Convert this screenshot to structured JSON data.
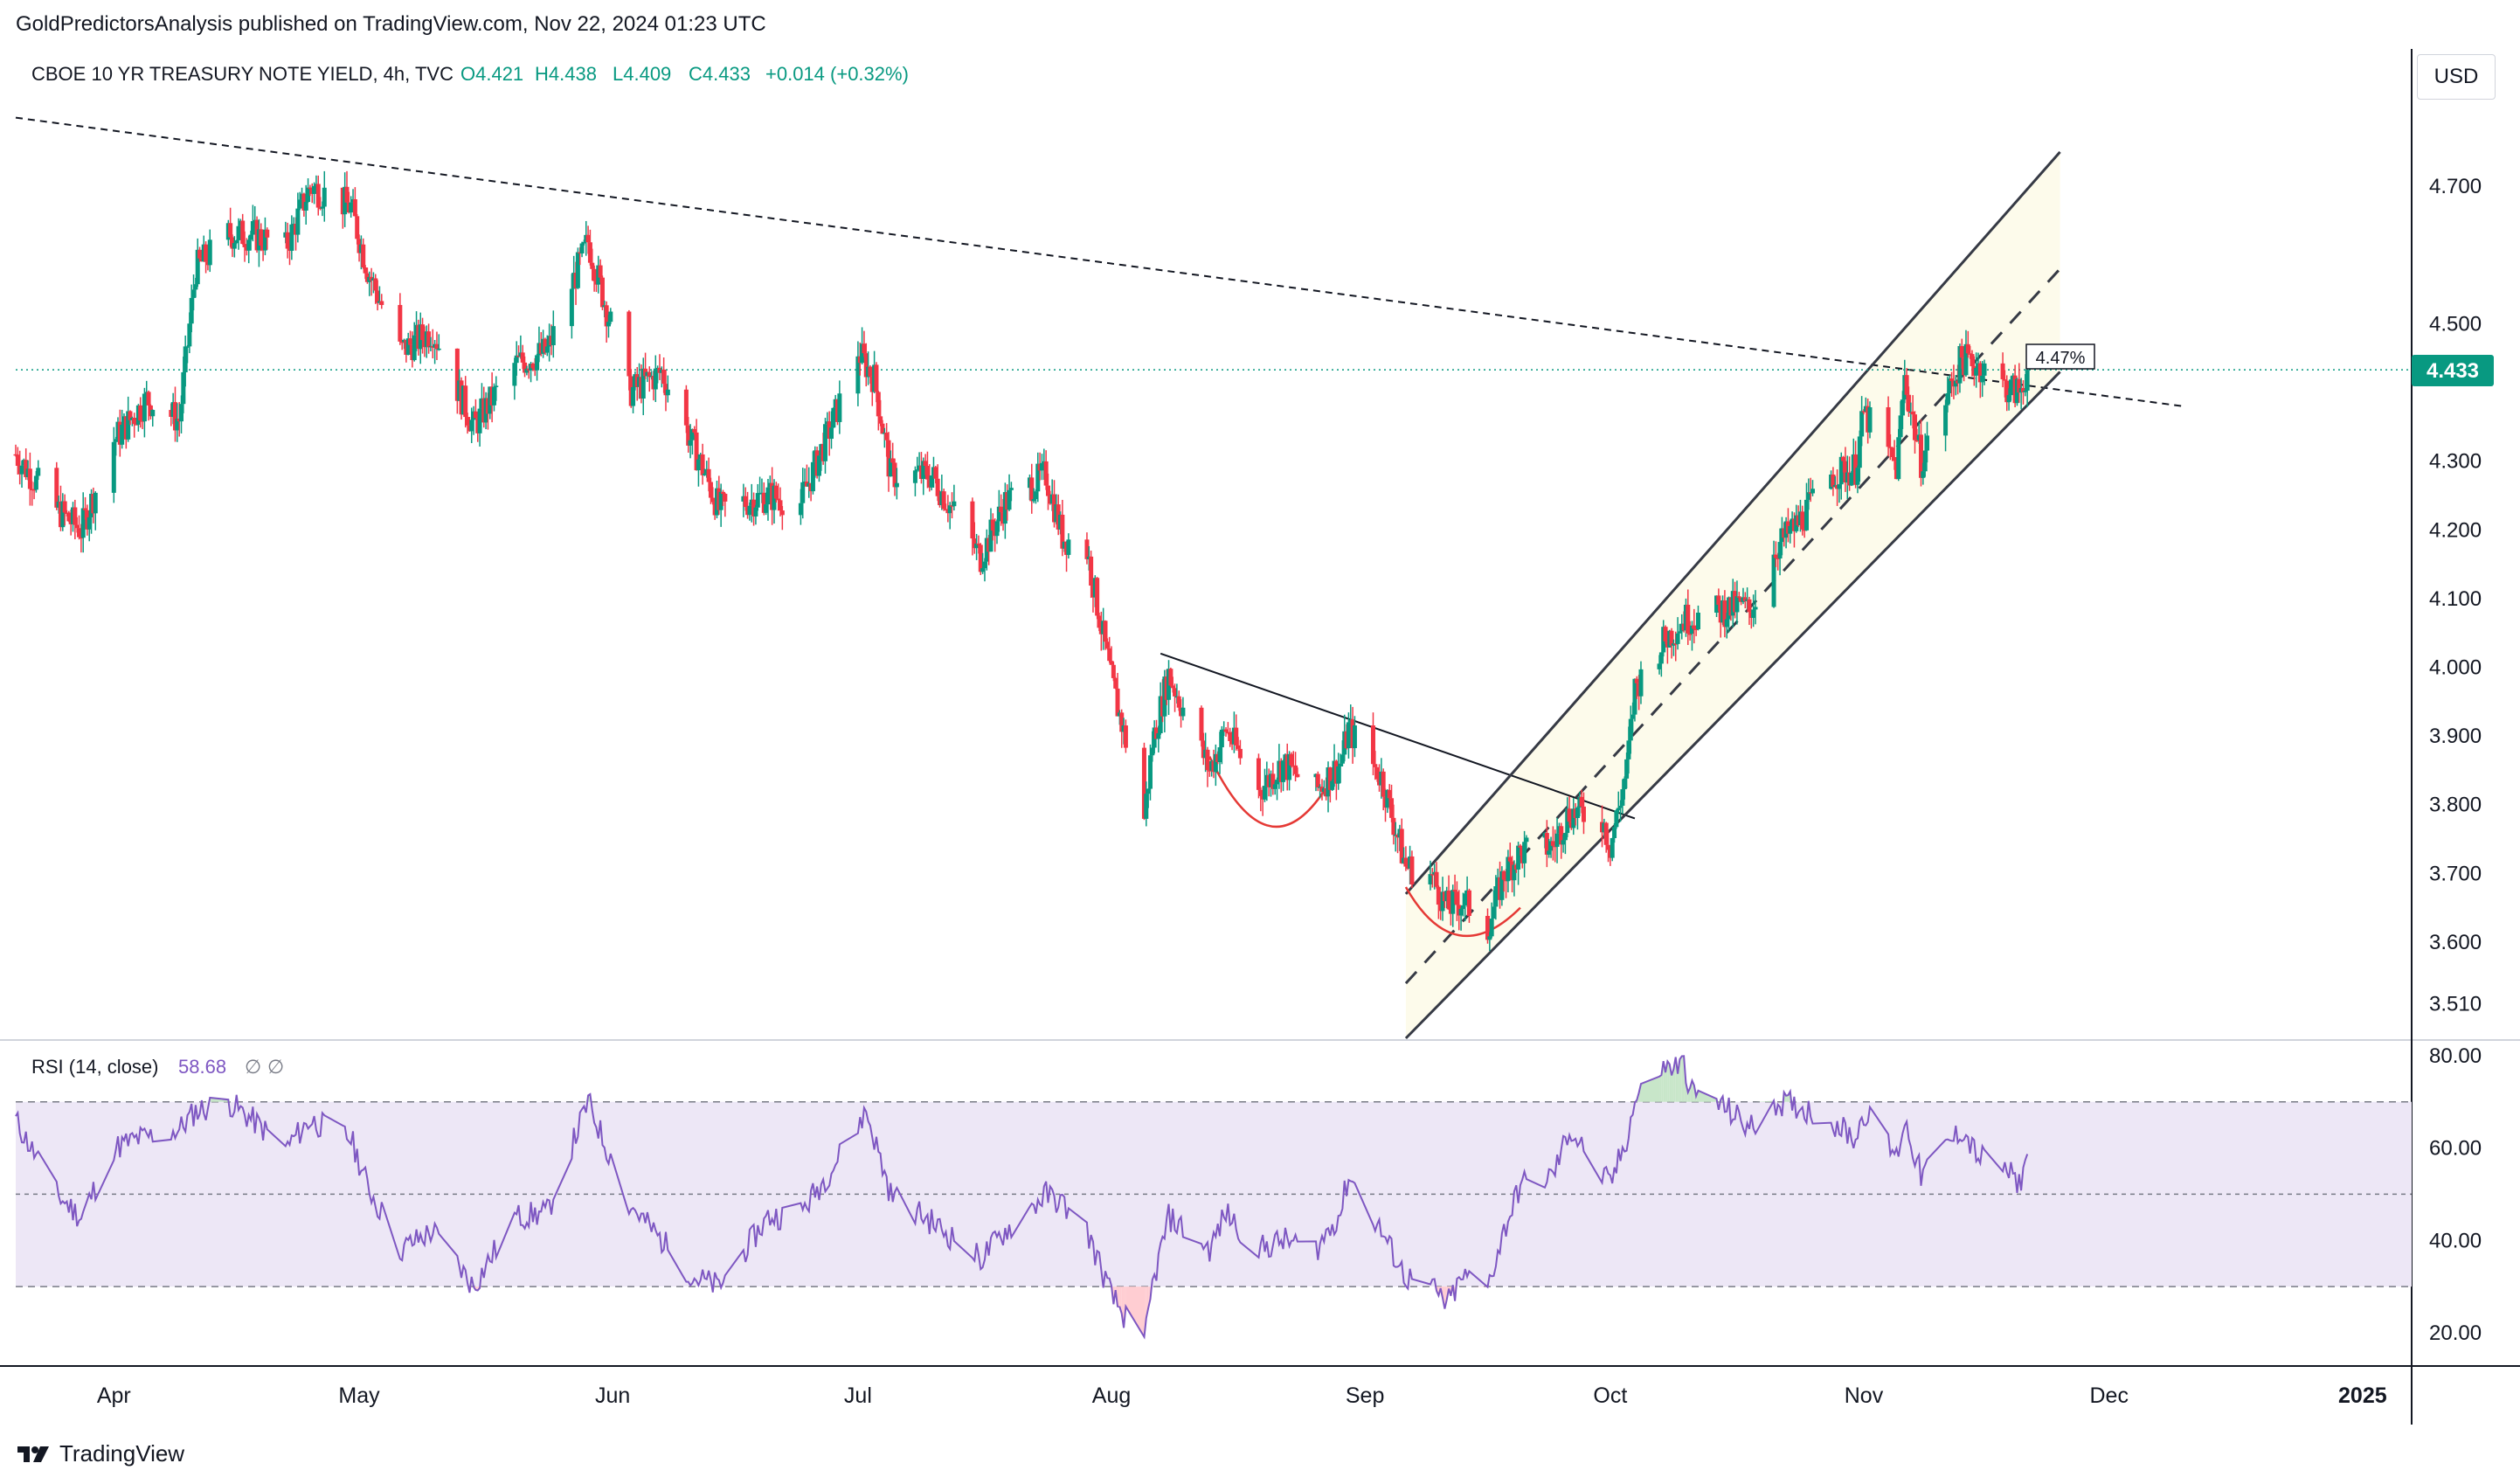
{
  "publisher": "GoldPredictorsAnalysis published on TradingView.com, Nov 22, 2024 01:23 UTC",
  "brand": "TradingView",
  "legend": {
    "symbol": "CBOE 10 YR TREASURY NOTE YIELD, 4h, TVC",
    "open": "O4.421",
    "high": "H4.438",
    "low": "L4.409",
    "close": "C4.433",
    "change": "+0.014 (+0.32%)"
  },
  "currency": "USD",
  "price_label": "4.433",
  "annotation": "4.47%",
  "rsi_legend": {
    "name": "RSI (14, close)",
    "value": "58.68",
    "extra1": "∅",
    "extra2": "∅"
  },
  "colors": {
    "up": "#089981",
    "down": "#f23645",
    "rsi_line": "#7e57c2",
    "rsi_band": "#ede7f6",
    "channel_fill": "#fdfbeb",
    "price_badge": "#089981",
    "curve": "#e53935"
  },
  "chart_data": [
    {
      "type": "candlestick",
      "title": "CBOE 10 YR TREASURY NOTE YIELD",
      "x_ticks": [
        "Apr",
        "May",
        "Jun",
        "Jul",
        "Aug",
        "Sep",
        "Oct",
        "Nov",
        "Dec",
        "2025"
      ],
      "y_ticks": [
        "4.700",
        "4.500",
        "4.300",
        "4.200",
        "4.100",
        "4.000",
        "3.900",
        "3.800",
        "3.700",
        "3.600",
        "3.510"
      ],
      "ylim": [
        3.46,
        4.9
      ],
      "last_close": 4.433,
      "anchors": [
        [
          "2024-03-20",
          4.31
        ],
        [
          "2024-03-25",
          4.23
        ],
        [
          "2024-03-28",
          4.2
        ],
        [
          "2024-04-01",
          4.33
        ],
        [
          "2024-04-05",
          4.39
        ],
        [
          "2024-04-09",
          4.36
        ],
        [
          "2024-04-11",
          4.58
        ],
        [
          "2024-04-15",
          4.63
        ],
        [
          "2024-04-18",
          4.63
        ],
        [
          "2024-04-22",
          4.61
        ],
        [
          "2024-04-25",
          4.7
        ],
        [
          "2024-04-30",
          4.67
        ],
        [
          "2024-05-02",
          4.58
        ],
        [
          "2024-05-06",
          4.46
        ],
        [
          "2024-05-10",
          4.49
        ],
        [
          "2024-05-15",
          4.35
        ],
        [
          "2024-05-20",
          4.44
        ],
        [
          "2024-05-24",
          4.46
        ],
        [
          "2024-05-29",
          4.62
        ],
        [
          "2024-06-03",
          4.4
        ],
        [
          "2024-06-07",
          4.43
        ],
        [
          "2024-06-12",
          4.29
        ],
        [
          "2024-06-14",
          4.23
        ],
        [
          "2024-06-20",
          4.25
        ],
        [
          "2024-06-24",
          4.24
        ],
        [
          "2024-06-28",
          4.36
        ],
        [
          "2024-07-01",
          4.46
        ],
        [
          "2024-07-03",
          4.42
        ],
        [
          "2024-07-05",
          4.28
        ],
        [
          "2024-07-10",
          4.28
        ],
        [
          "2024-07-16",
          4.16
        ],
        [
          "2024-07-19",
          4.24
        ],
        [
          "2024-07-24",
          4.28
        ],
        [
          "2024-07-26",
          4.19
        ],
        [
          "2024-07-29",
          4.17
        ],
        [
          "2024-08-01",
          3.98
        ],
        [
          "2024-08-05",
          3.78
        ],
        [
          "2024-08-06",
          3.89
        ],
        [
          "2024-08-08",
          3.99
        ],
        [
          "2024-08-13",
          3.85
        ],
        [
          "2024-08-15",
          3.91
        ],
        [
          "2024-08-19",
          3.82
        ],
        [
          "2024-08-22",
          3.86
        ],
        [
          "2024-08-26",
          3.82
        ],
        [
          "2024-08-29",
          3.86
        ],
        [
          "2024-08-30",
          3.91
        ],
        [
          "2024-09-03",
          3.84
        ],
        [
          "2024-09-06",
          3.71
        ],
        [
          "2024-09-09",
          3.7
        ],
        [
          "2024-09-11",
          3.65
        ],
        [
          "2024-09-13",
          3.66
        ],
        [
          "2024-09-16",
          3.62
        ],
        [
          "2024-09-18",
          3.7
        ],
        [
          "2024-09-20",
          3.73
        ],
        [
          "2024-09-24",
          3.74
        ],
        [
          "2024-09-26",
          3.79
        ],
        [
          "2024-09-30",
          3.78
        ],
        [
          "2024-10-01",
          3.74
        ],
        [
          "2024-10-03",
          3.85
        ],
        [
          "2024-10-04",
          3.97
        ],
        [
          "2024-10-07",
          4.03
        ],
        [
          "2024-10-10",
          4.07
        ],
        [
          "2024-10-14",
          4.08
        ],
        [
          "2024-10-17",
          4.09
        ],
        [
          "2024-10-18",
          4.08
        ],
        [
          "2024-10-21",
          4.17
        ],
        [
          "2024-10-24",
          4.21
        ],
        [
          "2024-10-28",
          4.28
        ],
        [
          "2024-10-31",
          4.29
        ],
        [
          "2024-11-01",
          4.37
        ],
        [
          "2024-11-05",
          4.29
        ],
        [
          "2024-11-06",
          4.42
        ],
        [
          "2024-11-08",
          4.3
        ],
        [
          "2024-11-12",
          4.42
        ],
        [
          "2024-11-13",
          4.45
        ],
        [
          "2024-11-15",
          4.44
        ],
        [
          "2024-11-18",
          4.41
        ],
        [
          "2024-11-20",
          4.4
        ],
        [
          "2024-11-21",
          4.433
        ]
      ],
      "overlays": {
        "long_downtrend": [
          [
            "2024-03-20",
            4.8
          ],
          [
            "2024-12-10",
            4.38
          ]
        ],
        "aug_downtrend": [
          [
            "2024-08-07",
            4.02
          ],
          [
            "2024-10-04",
            3.78
          ]
        ],
        "channel_upper": [
          [
            "2024-09-06",
            3.67
          ],
          [
            "2024-11-25",
            4.75
          ]
        ],
        "channel_lower": [
          [
            "2024-09-06",
            3.46
          ],
          [
            "2024-11-25",
            4.43
          ]
        ],
        "channel_mid": [
          [
            "2024-09-06",
            3.54
          ],
          [
            "2024-11-25",
            4.58
          ]
        ],
        "cup_aug": [
          [
            "2024-08-13",
            3.87
          ],
          [
            "2024-08-20",
            3.77
          ],
          [
            "2024-08-27",
            3.82
          ]
        ],
        "cup_sep": [
          [
            "2024-09-06",
            3.68
          ],
          [
            "2024-09-12",
            3.61
          ],
          [
            "2024-09-20",
            3.65
          ]
        ]
      }
    },
    {
      "type": "line",
      "title": "RSI (14, close)",
      "last_value": 58.68,
      "y_ticks": [
        "80.00",
        "60.00",
        "40.00",
        "20.00"
      ],
      "ylim": [
        13,
        83
      ],
      "bands": [
        30,
        50,
        70
      ],
      "anchors": [
        [
          "2024-03-20",
          66
        ],
        [
          "2024-03-25",
          50
        ],
        [
          "2024-03-28",
          45
        ],
        [
          "2024-04-01",
          60
        ],
        [
          "2024-04-04",
          62
        ],
        [
          "2024-04-09",
          64
        ],
        [
          "2024-04-11",
          68
        ],
        [
          "2024-04-15",
          70
        ],
        [
          "2024-04-18",
          66
        ],
        [
          "2024-04-22",
          60
        ],
        [
          "2024-04-25",
          66
        ],
        [
          "2024-04-30",
          62
        ],
        [
          "2024-05-02",
          52
        ],
        [
          "2024-05-06",
          38
        ],
        [
          "2024-05-10",
          42
        ],
        [
          "2024-05-15",
          30
        ],
        [
          "2024-05-20",
          45
        ],
        [
          "2024-05-24",
          46
        ],
        [
          "2024-05-29",
          70
        ],
        [
          "2024-06-03",
          48
        ],
        [
          "2024-06-07",
          40
        ],
        [
          "2024-06-11",
          32
        ],
        [
          "2024-06-14",
          30
        ],
        [
          "2024-06-20",
          45
        ],
        [
          "2024-06-24",
          46
        ],
        [
          "2024-06-28",
          56
        ],
        [
          "2024-07-02",
          68
        ],
        [
          "2024-07-05",
          50
        ],
        [
          "2024-07-10",
          44
        ],
        [
          "2024-07-16",
          36
        ],
        [
          "2024-07-19",
          42
        ],
        [
          "2024-07-24",
          50
        ],
        [
          "2024-07-26",
          48
        ],
        [
          "2024-07-29",
          42
        ],
        [
          "2024-08-01",
          28
        ],
        [
          "2024-08-05",
          17
        ],
        [
          "2024-08-06",
          30
        ],
        [
          "2024-08-08",
          45
        ],
        [
          "2024-08-13",
          38
        ],
        [
          "2024-08-15",
          46
        ],
        [
          "2024-08-19",
          38
        ],
        [
          "2024-08-22",
          40
        ],
        [
          "2024-08-26",
          38
        ],
        [
          "2024-08-29",
          46
        ],
        [
          "2024-08-30",
          54
        ],
        [
          "2024-09-03",
          42
        ],
        [
          "2024-09-06",
          32
        ],
        [
          "2024-09-09",
          30
        ],
        [
          "2024-09-11",
          26
        ],
        [
          "2024-09-13",
          32
        ],
        [
          "2024-09-16",
          30
        ],
        [
          "2024-09-18",
          42
        ],
        [
          "2024-09-20",
          52
        ],
        [
          "2024-09-24",
          54
        ],
        [
          "2024-09-26",
          64
        ],
        [
          "2024-09-30",
          54
        ],
        [
          "2024-10-01",
          52
        ],
        [
          "2024-10-03",
          62
        ],
        [
          "2024-10-04",
          70
        ],
        [
          "2024-10-07",
          77
        ],
        [
          "2024-10-10",
          78
        ],
        [
          "2024-10-11",
          72
        ],
        [
          "2024-10-14",
          70
        ],
        [
          "2024-10-17",
          66
        ],
        [
          "2024-10-18",
          64
        ],
        [
          "2024-10-21",
          70
        ],
        [
          "2024-10-24",
          69
        ],
        [
          "2024-10-28",
          66
        ],
        [
          "2024-10-31",
          62
        ],
        [
          "2024-11-01",
          68
        ],
        [
          "2024-11-05",
          58
        ],
        [
          "2024-11-06",
          66
        ],
        [
          "2024-11-08",
          54
        ],
        [
          "2024-11-12",
          62
        ],
        [
          "2024-11-13",
          64
        ],
        [
          "2024-11-15",
          58
        ],
        [
          "2024-11-18",
          56
        ],
        [
          "2024-11-20",
          52
        ],
        [
          "2024-11-21",
          58.68
        ]
      ]
    }
  ]
}
